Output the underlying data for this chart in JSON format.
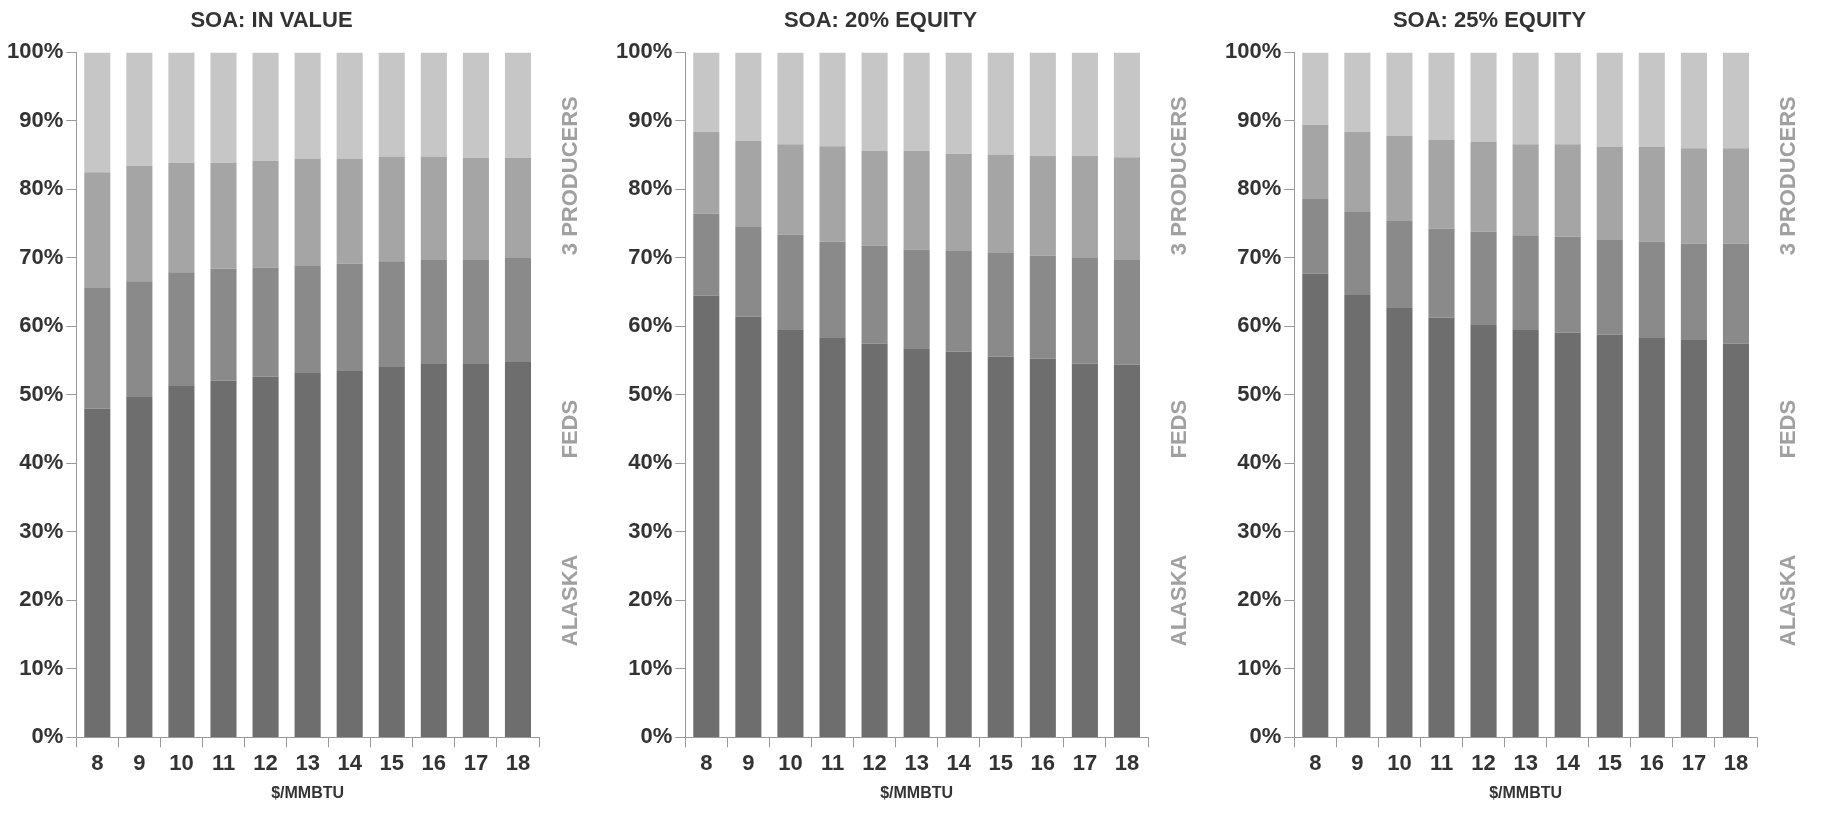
{
  "chart_data": [
    {
      "type": "bar",
      "title": "SOA: IN VALUE",
      "xlabel": "$/MMBTU",
      "stacked": true,
      "categories": [
        "8",
        "9",
        "10",
        "11",
        "12",
        "13",
        "14",
        "15",
        "16",
        "17",
        "18"
      ],
      "series": [
        {
          "color": "#6e6e6e",
          "values": [
            48.0,
            49.7,
            51.4,
            52.1,
            52.7,
            53.2,
            53.6,
            54.2,
            54.5,
            54.5,
            54.8
          ]
        },
        {
          "color": "#8a8a8a",
          "values": [
            17.6,
            16.9,
            16.5,
            16.3,
            15.9,
            15.6,
            15.6,
            15.3,
            15.2,
            15.2,
            15.2
          ]
        },
        {
          "color": "#a5a5a5",
          "values": [
            16.9,
            16.8,
            16.0,
            15.5,
            15.6,
            15.7,
            15.3,
            15.3,
            15.1,
            14.9,
            14.6
          ]
        },
        {
          "color": "#c6c6c6",
          "values": [
            17.5,
            16.6,
            16.1,
            16.1,
            15.8,
            15.5,
            15.5,
            15.2,
            15.2,
            15.4,
            15.4
          ]
        }
      ],
      "ylim": [
        0,
        100
      ],
      "yticks": [
        {
          "value": 0,
          "label": "0%"
        },
        {
          "value": 10,
          "label": "10%"
        },
        {
          "value": 20,
          "label": "20%"
        },
        {
          "value": 30,
          "label": "30%"
        },
        {
          "value": 40,
          "label": "40%"
        },
        {
          "value": 50,
          "label": "50%"
        },
        {
          "value": 60,
          "label": "60%"
        },
        {
          "value": 70,
          "label": "70%"
        },
        {
          "value": 80,
          "label": "80%"
        },
        {
          "value": 90,
          "label": "90%"
        },
        {
          "value": 100,
          "label": "100%"
        }
      ],
      "annotations": [
        "3 PRODUCERS",
        "FEDS",
        "ALASKA"
      ]
    },
    {
      "type": "bar",
      "title": "SOA: 20% EQUITY",
      "xlabel": "$/MMBTU",
      "stacked": true,
      "categories": [
        "8",
        "9",
        "10",
        "11",
        "12",
        "13",
        "14",
        "15",
        "16",
        "17",
        "18"
      ],
      "series": [
        {
          "color": "#6e6e6e",
          "values": [
            64.5,
            61.4,
            59.6,
            58.4,
            57.5,
            56.8,
            56.3,
            55.6,
            55.3,
            54.6,
            54.4
          ]
        },
        {
          "color": "#8a8a8a",
          "values": [
            12.0,
            13.1,
            13.8,
            14.0,
            14.3,
            14.4,
            14.7,
            15.1,
            15.0,
            15.4,
            15.3
          ]
        },
        {
          "color": "#a5a5a5",
          "values": [
            11.9,
            12.6,
            13.2,
            13.9,
            13.8,
            14.4,
            14.2,
            14.4,
            14.6,
            14.9,
            15.0
          ]
        },
        {
          "color": "#c6c6c6",
          "values": [
            11.6,
            12.9,
            13.4,
            13.7,
            14.4,
            14.4,
            14.8,
            14.9,
            15.1,
            15.1,
            15.3
          ]
        }
      ],
      "ylim": [
        0,
        100
      ],
      "yticks": [
        {
          "value": 0,
          "label": "0%"
        },
        {
          "value": 10,
          "label": "10%"
        },
        {
          "value": 20,
          "label": "20%"
        },
        {
          "value": 30,
          "label": "30%"
        },
        {
          "value": 40,
          "label": "40%"
        },
        {
          "value": 50,
          "label": "50%"
        },
        {
          "value": 60,
          "label": "60%"
        },
        {
          "value": 70,
          "label": "70%"
        },
        {
          "value": 80,
          "label": "80%"
        },
        {
          "value": 90,
          "label": "90%"
        },
        {
          "value": 100,
          "label": "100%"
        }
      ],
      "annotations": [
        "3 PRODUCERS",
        "FEDS",
        "ALASKA"
      ]
    },
    {
      "type": "bar",
      "title": "SOA: 25% EQUITY",
      "xlabel": "$/MMBTU",
      "stacked": true,
      "categories": [
        "8",
        "9",
        "10",
        "11",
        "12",
        "13",
        "14",
        "15",
        "16",
        "17",
        "18"
      ],
      "series": [
        {
          "color": "#6e6e6e",
          "values": [
            67.7,
            64.6,
            62.8,
            61.3,
            60.3,
            59.6,
            59.1,
            58.8,
            58.4,
            58.0,
            57.5
          ]
        },
        {
          "color": "#8a8a8a",
          "values": [
            10.9,
            12.1,
            12.6,
            13.0,
            13.5,
            13.7,
            14.0,
            13.8,
            14.0,
            14.1,
            14.6
          ]
        },
        {
          "color": "#a5a5a5",
          "values": [
            10.8,
            11.7,
            12.4,
            12.9,
            13.2,
            13.3,
            13.5,
            13.6,
            13.8,
            13.9,
            13.9
          ]
        },
        {
          "color": "#c6c6c6",
          "values": [
            10.6,
            11.6,
            12.2,
            12.8,
            13.0,
            13.4,
            13.4,
            13.8,
            13.8,
            14.0,
            14.0
          ]
        }
      ],
      "ylim": [
        0,
        100
      ],
      "yticks": [
        {
          "value": 0,
          "label": "0%"
        },
        {
          "value": 10,
          "label": "10%"
        },
        {
          "value": 20,
          "label": "20%"
        },
        {
          "value": 30,
          "label": "30%"
        },
        {
          "value": 40,
          "label": "40%"
        },
        {
          "value": 50,
          "label": "50%"
        },
        {
          "value": 60,
          "label": "60%"
        },
        {
          "value": 70,
          "label": "70%"
        },
        {
          "value": 80,
          "label": "80%"
        },
        {
          "value": 90,
          "label": "90%"
        },
        {
          "value": 100,
          "label": "100%"
        }
      ],
      "annotations": [
        "3 PRODUCERS",
        "FEDS",
        "ALASKA"
      ]
    }
  ]
}
